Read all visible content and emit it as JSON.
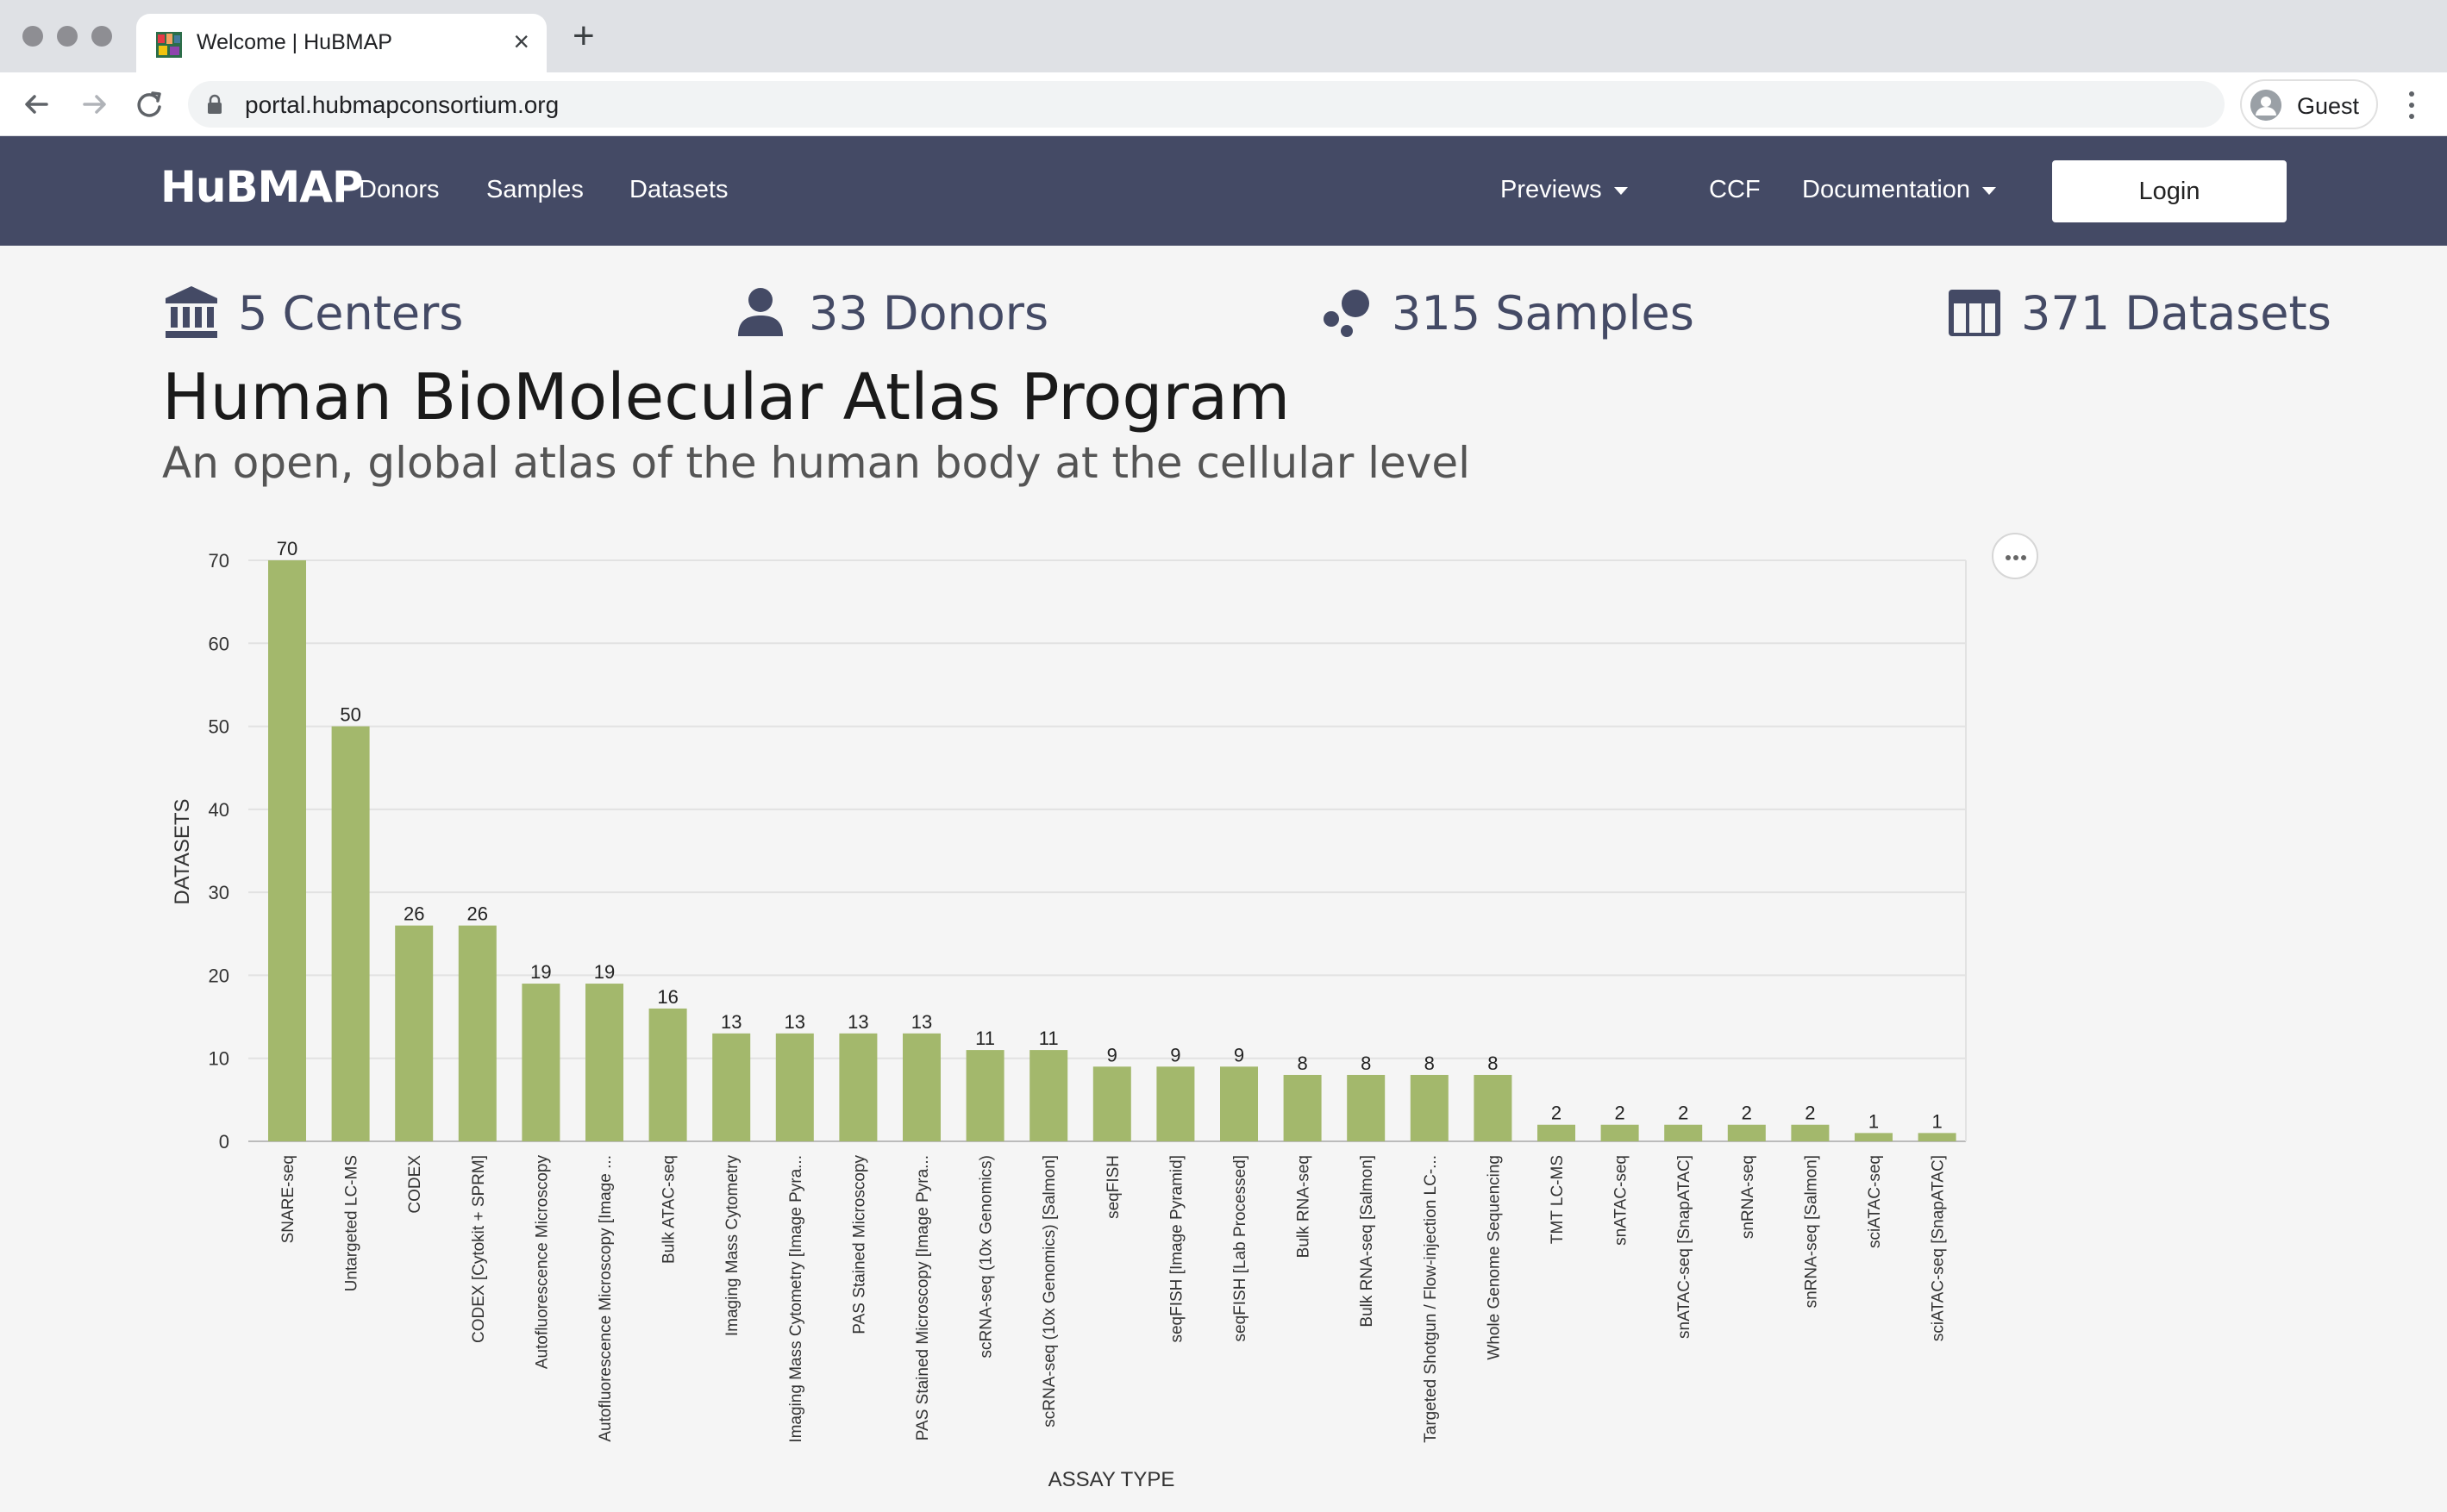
{
  "browser": {
    "tab_title": "Welcome | HuBMAP",
    "tab_close": "×",
    "new_tab": "+",
    "url": "portal.hubmapconsortium.org",
    "profile_label": "Guest"
  },
  "navbar": {
    "logo": "HuBMAP",
    "links": [
      "Donors",
      "Samples",
      "Datasets"
    ],
    "right_links": [
      {
        "label": "Previews",
        "dropdown": true
      },
      {
        "label": "CCF",
        "dropdown": false
      },
      {
        "label": "Documentation",
        "dropdown": true
      }
    ],
    "login_label": "Login",
    "background": "#444a65"
  },
  "stats": [
    {
      "icon": "institution-icon",
      "label": "5 Centers"
    },
    {
      "icon": "user-icon",
      "label": "33 Donors"
    },
    {
      "icon": "samples-icon",
      "label": "315 Samples"
    },
    {
      "icon": "table-icon",
      "label": "371 Datasets"
    }
  ],
  "hero": {
    "title": "Human BioMolecular Atlas Program",
    "subtitle": "An open, global atlas of the human body at the cellular level"
  },
  "chart_data": {
    "type": "bar",
    "title": "",
    "xlabel": "ASSAY TYPE",
    "ylabel": "DATASETS",
    "ylim": [
      0,
      70
    ],
    "yticks": [
      0,
      10,
      20,
      30,
      40,
      50,
      60,
      70
    ],
    "grid": true,
    "bar_color": "#a3b86c",
    "categories": [
      "SNARE-seq",
      "Untargeted LC-MS",
      "CODEX",
      "CODEX [Cytokit + SPRM]",
      "Autofluorescence Microscopy",
      "Autofluorescence Microscopy [Image ...",
      "Bulk ATAC-seq",
      "Imaging Mass Cytometry",
      "Imaging Mass Cytometry [Image Pyra...",
      "PAS Stained Microscopy",
      "PAS Stained Microscopy [Image Pyra...",
      "scRNA-seq (10x Genomics)",
      "scRNA-seq (10x Genomics) [Salmon]",
      "seqFISH",
      "seqFISH [Image Pyramid]",
      "seqFISH [Lab Processed]",
      "Bulk RNA-seq",
      "Bulk RNA-seq [Salmon]",
      "Targeted Shotgun / Flow-injection LC-...",
      "Whole Genome Sequencing",
      "TMT LC-MS",
      "snATAC-seq",
      "snATAC-seq [SnapATAC]",
      "snRNA-seq",
      "snRNA-seq [Salmon]",
      "sciATAC-seq",
      "sciATAC-seq [SnapATAC]"
    ],
    "values": [
      70,
      50,
      26,
      26,
      19,
      19,
      16,
      13,
      13,
      13,
      13,
      11,
      11,
      9,
      9,
      9,
      8,
      8,
      8,
      8,
      2,
      2,
      2,
      2,
      2,
      1,
      1
    ]
  }
}
